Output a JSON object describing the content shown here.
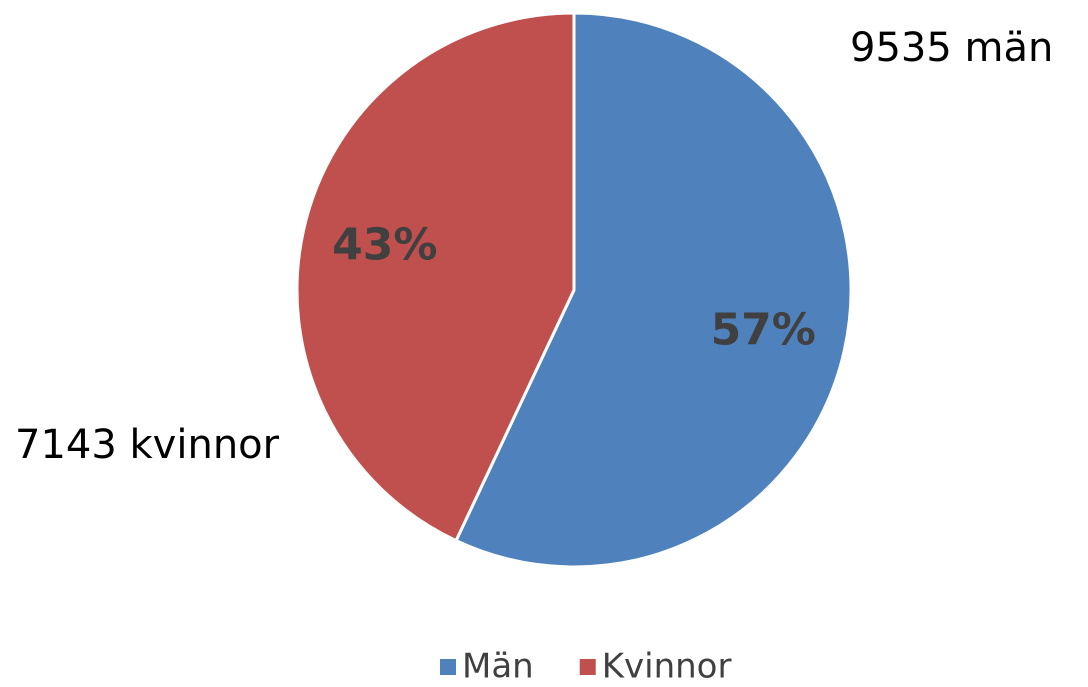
{
  "chart_data": {
    "type": "pie",
    "categories": [
      "Män",
      "Kvinnor"
    ],
    "values": [
      57,
      43
    ],
    "value_labels": [
      "57%",
      "43%"
    ],
    "colors": [
      "#4f81bd",
      "#c0504d"
    ],
    "annotations": [
      "9535 män",
      "7143 kvinnor"
    ],
    "legend": "bottom"
  }
}
